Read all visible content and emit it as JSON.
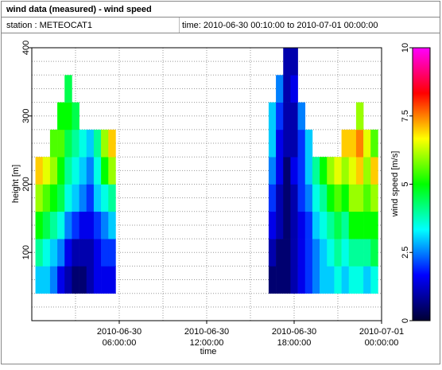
{
  "chart_data": {
    "type": "heatmap",
    "title": "wind data (measured) - wind speed",
    "station": "station : METEOCAT1",
    "time_range": "time: 2010-06-30 00:10:00 to 2010-07-01 00:00:00",
    "xlabel": "time",
    "ylabel": "height [m]",
    "zlabel": "wind speed [m/s]",
    "xlim": [
      "2010-06-30 00:00:00",
      "2010-07-01 00:00:00"
    ],
    "xticks": [
      {
        "value": "2010-06-30 06:00:00",
        "label": [
          "2010-06-30",
          "06:00:00"
        ]
      },
      {
        "value": "2010-06-30 12:00:00",
        "label": [
          "2010-06-30",
          "12:00:00"
        ]
      },
      {
        "value": "2010-06-30 18:00:00",
        "label": [
          "2010-06-30",
          "18:00:00"
        ]
      },
      {
        "value": "2010-07-01 00:00:00",
        "label": [
          "2010-07-01",
          "00:00:00"
        ]
      }
    ],
    "minor_xticks": [
      "2010-06-30 03:00:00",
      "2010-06-30 09:00:00",
      "2010-06-30 15:00:00",
      "2010-06-30 21:00:00"
    ],
    "ylim": [
      0,
      400
    ],
    "yticks": [
      100,
      200,
      300,
      400
    ],
    "minor_yticks": [
      20,
      40,
      60,
      80,
      120,
      140,
      160,
      180,
      220,
      240,
      260,
      280,
      320,
      340,
      360,
      380
    ],
    "grid": true,
    "zlim": [
      0,
      10
    ],
    "zticks": [
      0,
      2.5,
      5,
      7.5,
      10
    ],
    "colorscale": [
      "#000033",
      "#0000ff",
      "#00ffff",
      "#00ff00",
      "#ffff00",
      "#ff0000",
      "#ff00ff"
    ],
    "x": [
      "2010-06-30 00:30:00",
      "2010-06-30 01:00:00",
      "2010-06-30 01:30:00",
      "2010-06-30 02:00:00",
      "2010-06-30 02:30:00",
      "2010-06-30 03:00:00",
      "2010-06-30 03:30:00",
      "2010-06-30 04:00:00",
      "2010-06-30 04:30:00",
      "2010-06-30 05:00:00",
      "2010-06-30 05:30:00",
      "2010-06-30 16:30:00",
      "2010-06-30 17:00:00",
      "2010-06-30 17:30:00",
      "2010-06-30 18:00:00",
      "2010-06-30 18:30:00",
      "2010-06-30 19:00:00",
      "2010-06-30 19:30:00",
      "2010-06-30 20:00:00",
      "2010-06-30 20:30:00",
      "2010-06-30 21:00:00",
      "2010-06-30 21:30:00",
      "2010-06-30 22:00:00",
      "2010-06-30 22:30:00",
      "2010-06-30 23:00:00",
      "2010-06-30 23:30:00"
    ],
    "y": [
      40,
      80,
      120,
      160,
      200,
      240,
      280,
      320,
      360
    ],
    "values": [
      [
        3,
        4,
        5,
        6,
        7,
        null,
        null,
        null,
        null
      ],
      [
        3,
        3.5,
        4.5,
        5.5,
        6.5,
        null,
        null,
        null,
        null
      ],
      [
        2.5,
        3,
        4,
        5,
        6,
        5.5,
        null,
        null,
        null
      ],
      [
        1.5,
        2.5,
        3.5,
        4.5,
        5,
        5.5,
        5,
        null,
        null
      ],
      [
        1,
        1.5,
        2.5,
        3.5,
        4,
        4.5,
        5,
        4.5,
        null
      ],
      [
        0.5,
        1,
        2,
        3,
        3.5,
        4,
        4.5,
        null,
        null
      ],
      [
        0.5,
        1,
        1.5,
        2.5,
        3,
        3.5,
        null,
        null,
        null
      ],
      [
        1,
        1,
        1.5,
        2,
        2.5,
        3,
        null,
        null,
        null
      ],
      [
        1.5,
        1.5,
        2,
        3,
        3.5,
        4,
        null,
        null,
        null
      ],
      [
        1.5,
        2,
        2.5,
        3.5,
        5,
        6,
        null,
        null,
        null
      ],
      [
        1.5,
        2,
        3,
        4,
        6,
        7,
        null,
        null,
        null
      ],
      [
        0.5,
        1,
        1.5,
        2,
        2.5,
        3,
        3,
        null,
        null
      ],
      [
        0.5,
        0.5,
        1,
        1,
        1.5,
        1.5,
        2,
        2.5,
        null
      ],
      [
        0.5,
        0.5,
        0.5,
        0.5,
        0.5,
        1,
        1,
        1,
        1
      ],
      [
        1,
        1,
        1,
        1,
        1.5,
        1,
        1,
        1.5,
        1
      ],
      [
        1.5,
        1.5,
        1.5,
        2,
        2,
        2,
        2.5,
        null,
        null
      ],
      [
        2,
        2,
        2,
        2.5,
        3,
        3,
        null,
        null,
        null
      ],
      [
        2.5,
        2.5,
        3,
        3.5,
        4,
        null,
        null,
        null,
        null
      ],
      [
        3,
        3,
        3.5,
        4,
        5,
        null,
        null,
        null,
        null
      ],
      [
        3,
        3.5,
        4,
        5,
        6,
        null,
        null,
        null,
        null
      ],
      [
        3.5,
        4,
        4.5,
        5.5,
        6.5,
        null,
        null,
        null,
        null
      ],
      [
        3,
        3.5,
        4,
        5,
        6,
        7,
        null,
        null,
        null
      ],
      [
        3.5,
        4,
        5,
        6,
        6.5,
        7,
        null,
        null,
        null
      ],
      [
        3.5,
        4,
        5,
        6,
        7,
        7.5,
        6,
        null,
        null
      ],
      [
        3,
        4,
        5,
        5.5,
        6,
        6.5,
        null,
        null,
        null
      ],
      [
        3.5,
        4.5,
        5,
        6,
        7,
        5.5,
        null,
        null,
        null
      ]
    ]
  }
}
